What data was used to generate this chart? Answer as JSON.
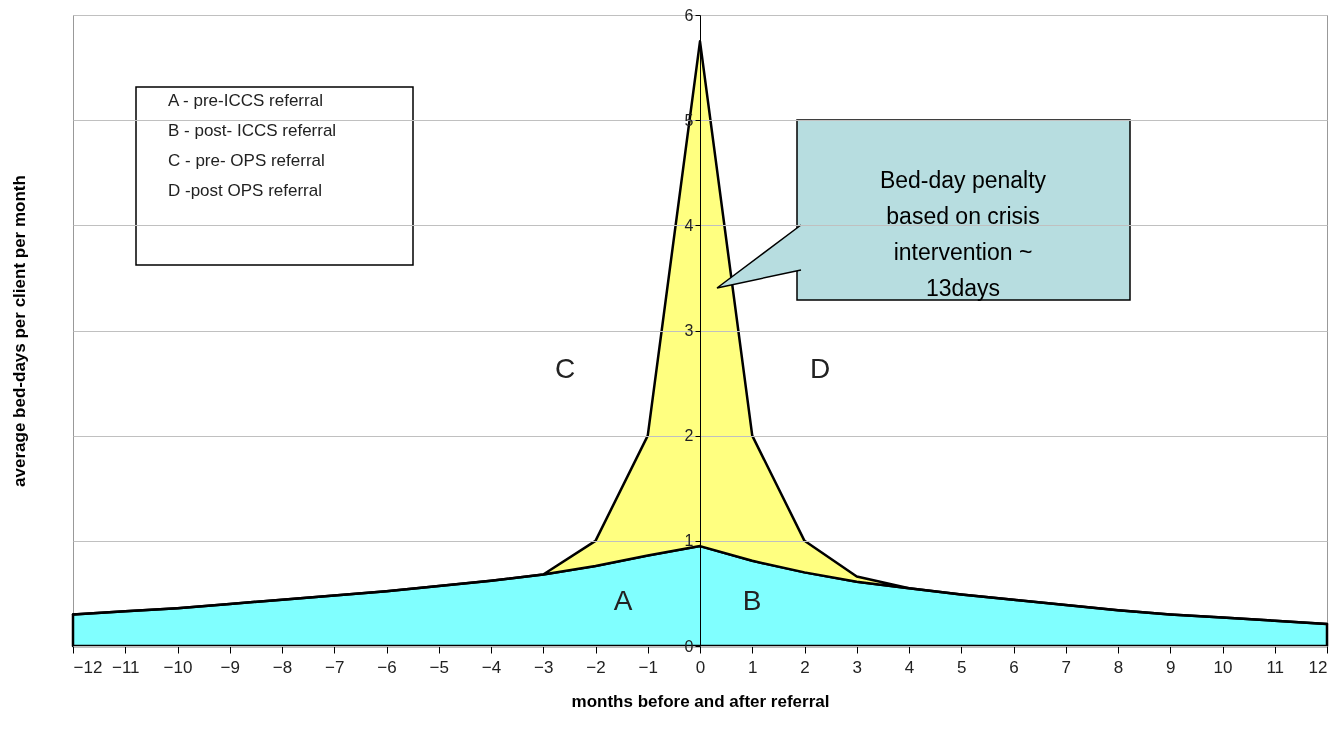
{
  "chart_data": {
    "type": "area",
    "stacked": true,
    "xlabel": "months before and after referral",
    "ylabel": "average bed-days per client per month",
    "x": [
      -12,
      -11,
      -10,
      -9,
      -8,
      -7,
      -6,
      -5,
      -4,
      -3,
      -2,
      -1,
      0,
      1,
      2,
      3,
      4,
      5,
      6,
      7,
      8,
      9,
      10,
      11,
      12
    ],
    "series": [
      {
        "color": "#80ffff",
        "values": [
          0.3,
          0.33,
          0.36,
          0.4,
          0.44,
          0.48,
          0.52,
          0.57,
          0.62,
          0.68,
          0.76,
          0.86,
          0.95,
          0.81,
          0.7,
          0.61,
          0.55,
          0.49,
          0.44,
          0.39,
          0.34,
          0.3,
          0.27,
          0.24,
          0.21
        ]
      },
      {
        "color": "#ffff80",
        "values": [
          0,
          0,
          0,
          0,
          0,
          0,
          0,
          0,
          0,
          0,
          0.24,
          1.14,
          4.8,
          1.19,
          0.3,
          0.05,
          0,
          0,
          0,
          0,
          0,
          0,
          0,
          0,
          0
        ]
      }
    ],
    "xlim": [
      -12,
      12
    ],
    "xticks": [
      -12,
      -11,
      -10,
      -9,
      -8,
      -7,
      -6,
      -5,
      -4,
      -3,
      -2,
      -1,
      0,
      1,
      2,
      3,
      4,
      5,
      6,
      7,
      8,
      9,
      10,
      11,
      12
    ],
    "ylim": [
      0,
      6
    ],
    "yticks": [
      0,
      1,
      2,
      3,
      4,
      5,
      6
    ],
    "grid": "y",
    "annotations": [
      "A - pre-ICCS referral",
      "B - post- ICCS referral",
      "C - pre- OPS referral",
      "D -post OPS referral",
      "A",
      "B",
      "C",
      "D",
      "Bed-day penalty\nbased on  crisis\nintervention ~\n13days"
    ]
  }
}
